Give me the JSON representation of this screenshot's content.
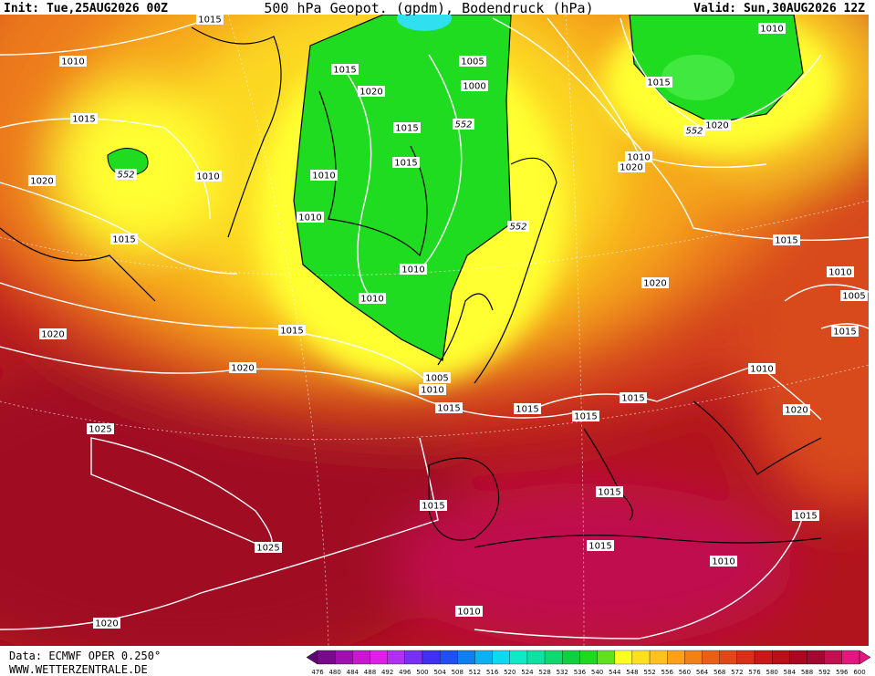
{
  "header": {
    "init": "Init: Tue,25AUG2026 00Z",
    "title": "500 hPa Geopot. (gpdm), Bodendruck (hPa)",
    "valid": "Valid: Sun,30AUG2026 12Z"
  },
  "isobar_labels": [
    "1015",
    "1010",
    "1015",
    "552",
    "1010",
    "1020",
    "1015",
    "1020",
    "1015",
    "1020",
    "1025",
    "1025",
    "1020",
    "1015",
    "1020",
    "1015",
    "1015",
    "1010",
    "1010",
    "1010",
    "1010",
    "1005",
    "1000",
    "552",
    "552",
    "1005",
    "1010",
    "1015",
    "1015",
    "1015",
    "1015",
    "1020",
    "1020",
    "1010",
    "1010",
    "1015",
    "552",
    "1020",
    "1015",
    "1010",
    "1005",
    "1015",
    "1010",
    "1020",
    "1015",
    "1015",
    "1015",
    "1010",
    "1015",
    "1010"
  ],
  "footer": {
    "source": "Data: ECMWF OPER 0.250°",
    "site": "WWW.WETTERZENTRALE.DE"
  },
  "scale": {
    "labels": [
      476,
      480,
      484,
      488,
      492,
      496,
      500,
      504,
      508,
      512,
      516,
      520,
      524,
      528,
      532,
      536,
      540,
      544,
      548,
      552,
      556,
      560,
      564,
      568,
      572,
      576,
      580,
      584,
      588,
      592,
      596,
      600
    ]
  }
}
